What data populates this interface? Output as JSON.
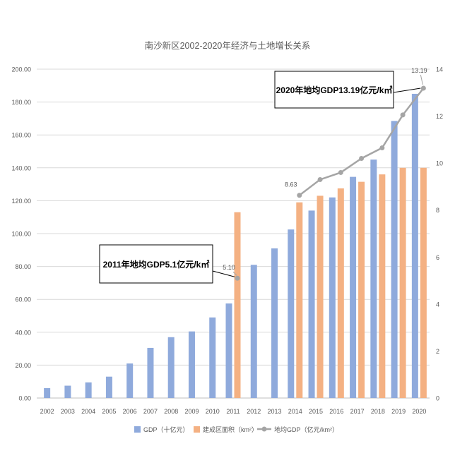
{
  "chart_data": {
    "type": "bar+line",
    "title": "南沙新区2002-2020年经济与土地增长关系",
    "categories": [
      "2002",
      "2003",
      "2004",
      "2005",
      "2006",
      "2007",
      "2008",
      "2009",
      "2010",
      "2011",
      "2012",
      "2013",
      "2014",
      "2015",
      "2016",
      "2017",
      "2018",
      "2019",
      "2020"
    ],
    "left_axis": {
      "ylim": [
        0,
        200
      ],
      "ticks": [
        "0.00",
        "20.00",
        "40.00",
        "60.00",
        "80.00",
        "100.00",
        "120.00",
        "140.00",
        "160.00",
        "180.00",
        "200.00"
      ]
    },
    "right_axis": {
      "ylim": [
        0,
        14
      ],
      "ticks": [
        "0",
        "2",
        "4",
        "6",
        "8",
        "10",
        "12",
        "14"
      ]
    },
    "series": [
      {
        "name": "GDP（十亿元）",
        "type": "bar",
        "axis": "left",
        "color": "#8faadc",
        "values": [
          6,
          7.5,
          9.5,
          13,
          21,
          30.5,
          37,
          40.5,
          49,
          57.5,
          81,
          91,
          102.5,
          114,
          122,
          134.5,
          145,
          168.5,
          185
        ]
      },
      {
        "name": "建成区面积（km²）",
        "type": "bar",
        "axis": "left",
        "color": "#f4b183",
        "values": [
          null,
          null,
          null,
          null,
          null,
          null,
          null,
          null,
          null,
          113,
          null,
          null,
          119,
          123,
          127.5,
          131.5,
          136,
          140,
          140
        ]
      },
      {
        "name": "地均GDP（亿元/km²）",
        "type": "line",
        "axis": "right",
        "color": "#a5a5a5",
        "values": [
          null,
          null,
          null,
          null,
          null,
          null,
          null,
          null,
          null,
          5.1,
          null,
          null,
          8.63,
          9.3,
          9.6,
          10.2,
          10.65,
          12.05,
          13.19
        ]
      }
    ],
    "data_labels": {
      "l2011": "5.10",
      "l2014": "8.63",
      "l2020": "13.19"
    },
    "callouts": {
      "c2011": "2011年地均GDP5.1亿元/k㎡",
      "c2020": "2020年地均GDP13.19亿元/k㎡"
    },
    "legend_placement": "bottom",
    "grid": true
  }
}
